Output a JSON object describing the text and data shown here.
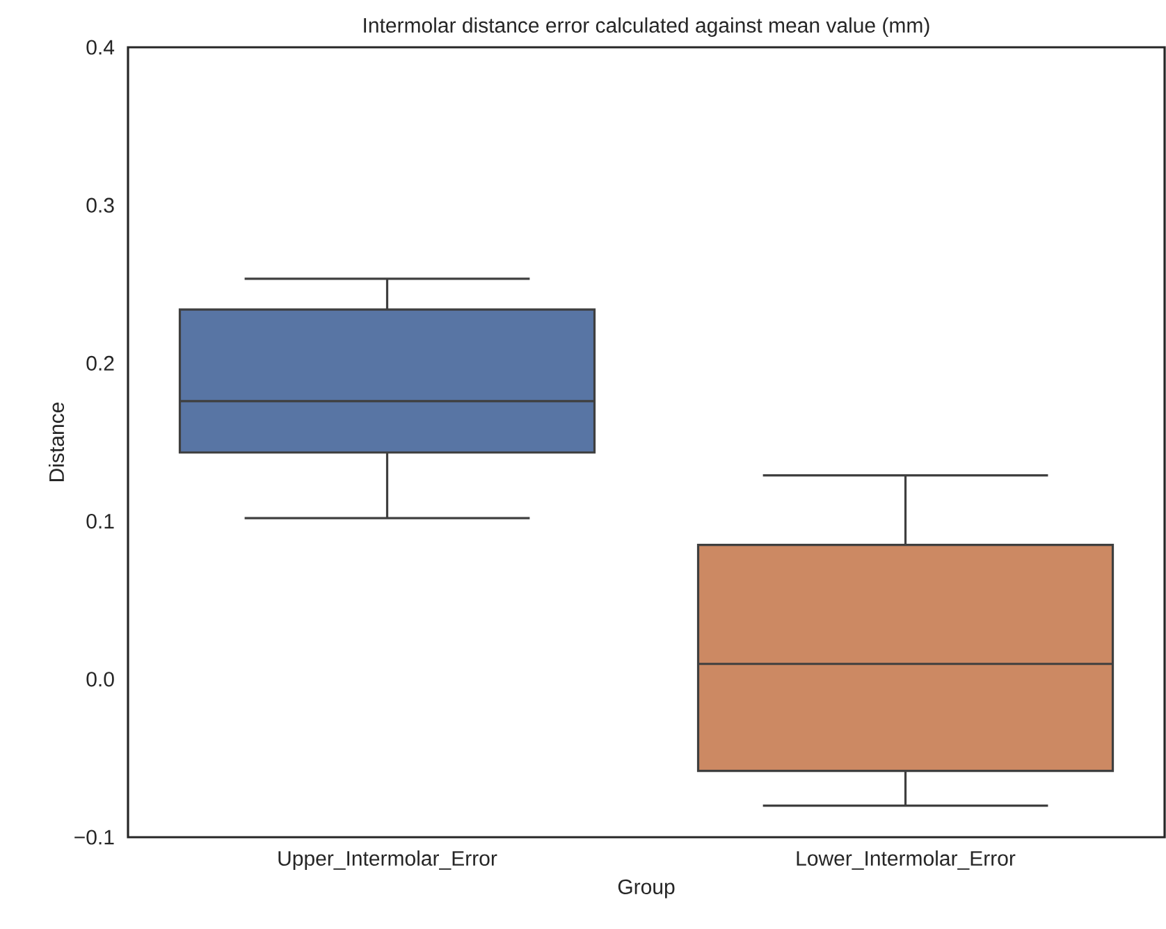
{
  "chart_data": {
    "type": "box",
    "title": "Intermolar distance error calculated against mean value (mm)",
    "xlabel": "Group",
    "ylabel": "Distance",
    "categories": [
      "Upper_Intermolar_Error",
      "Lower_Intermolar_Error"
    ],
    "colors": [
      "#5875a4",
      "#cc8963"
    ],
    "boxes": [
      {
        "low": 0.102,
        "q1": 0.1435,
        "median": 0.176,
        "q3": 0.234,
        "high": 0.2535
      },
      {
        "low": -0.08,
        "q1": -0.058,
        "median": 0.0097,
        "q3": 0.085,
        "high": 0.129
      }
    ],
    "ylim": [
      -0.1,
      0.4
    ],
    "yticks": [
      {
        "value": -0.1,
        "label": "−0.1"
      },
      {
        "value": 0,
        "label": "0.0"
      },
      {
        "value": 0.1,
        "label": "0.1"
      },
      {
        "value": 0.2,
        "label": "0.2"
      },
      {
        "value": 0.3,
        "label": "0.3"
      },
      {
        "value": 0.4,
        "label": "0.4"
      }
    ],
    "grid": false
  }
}
